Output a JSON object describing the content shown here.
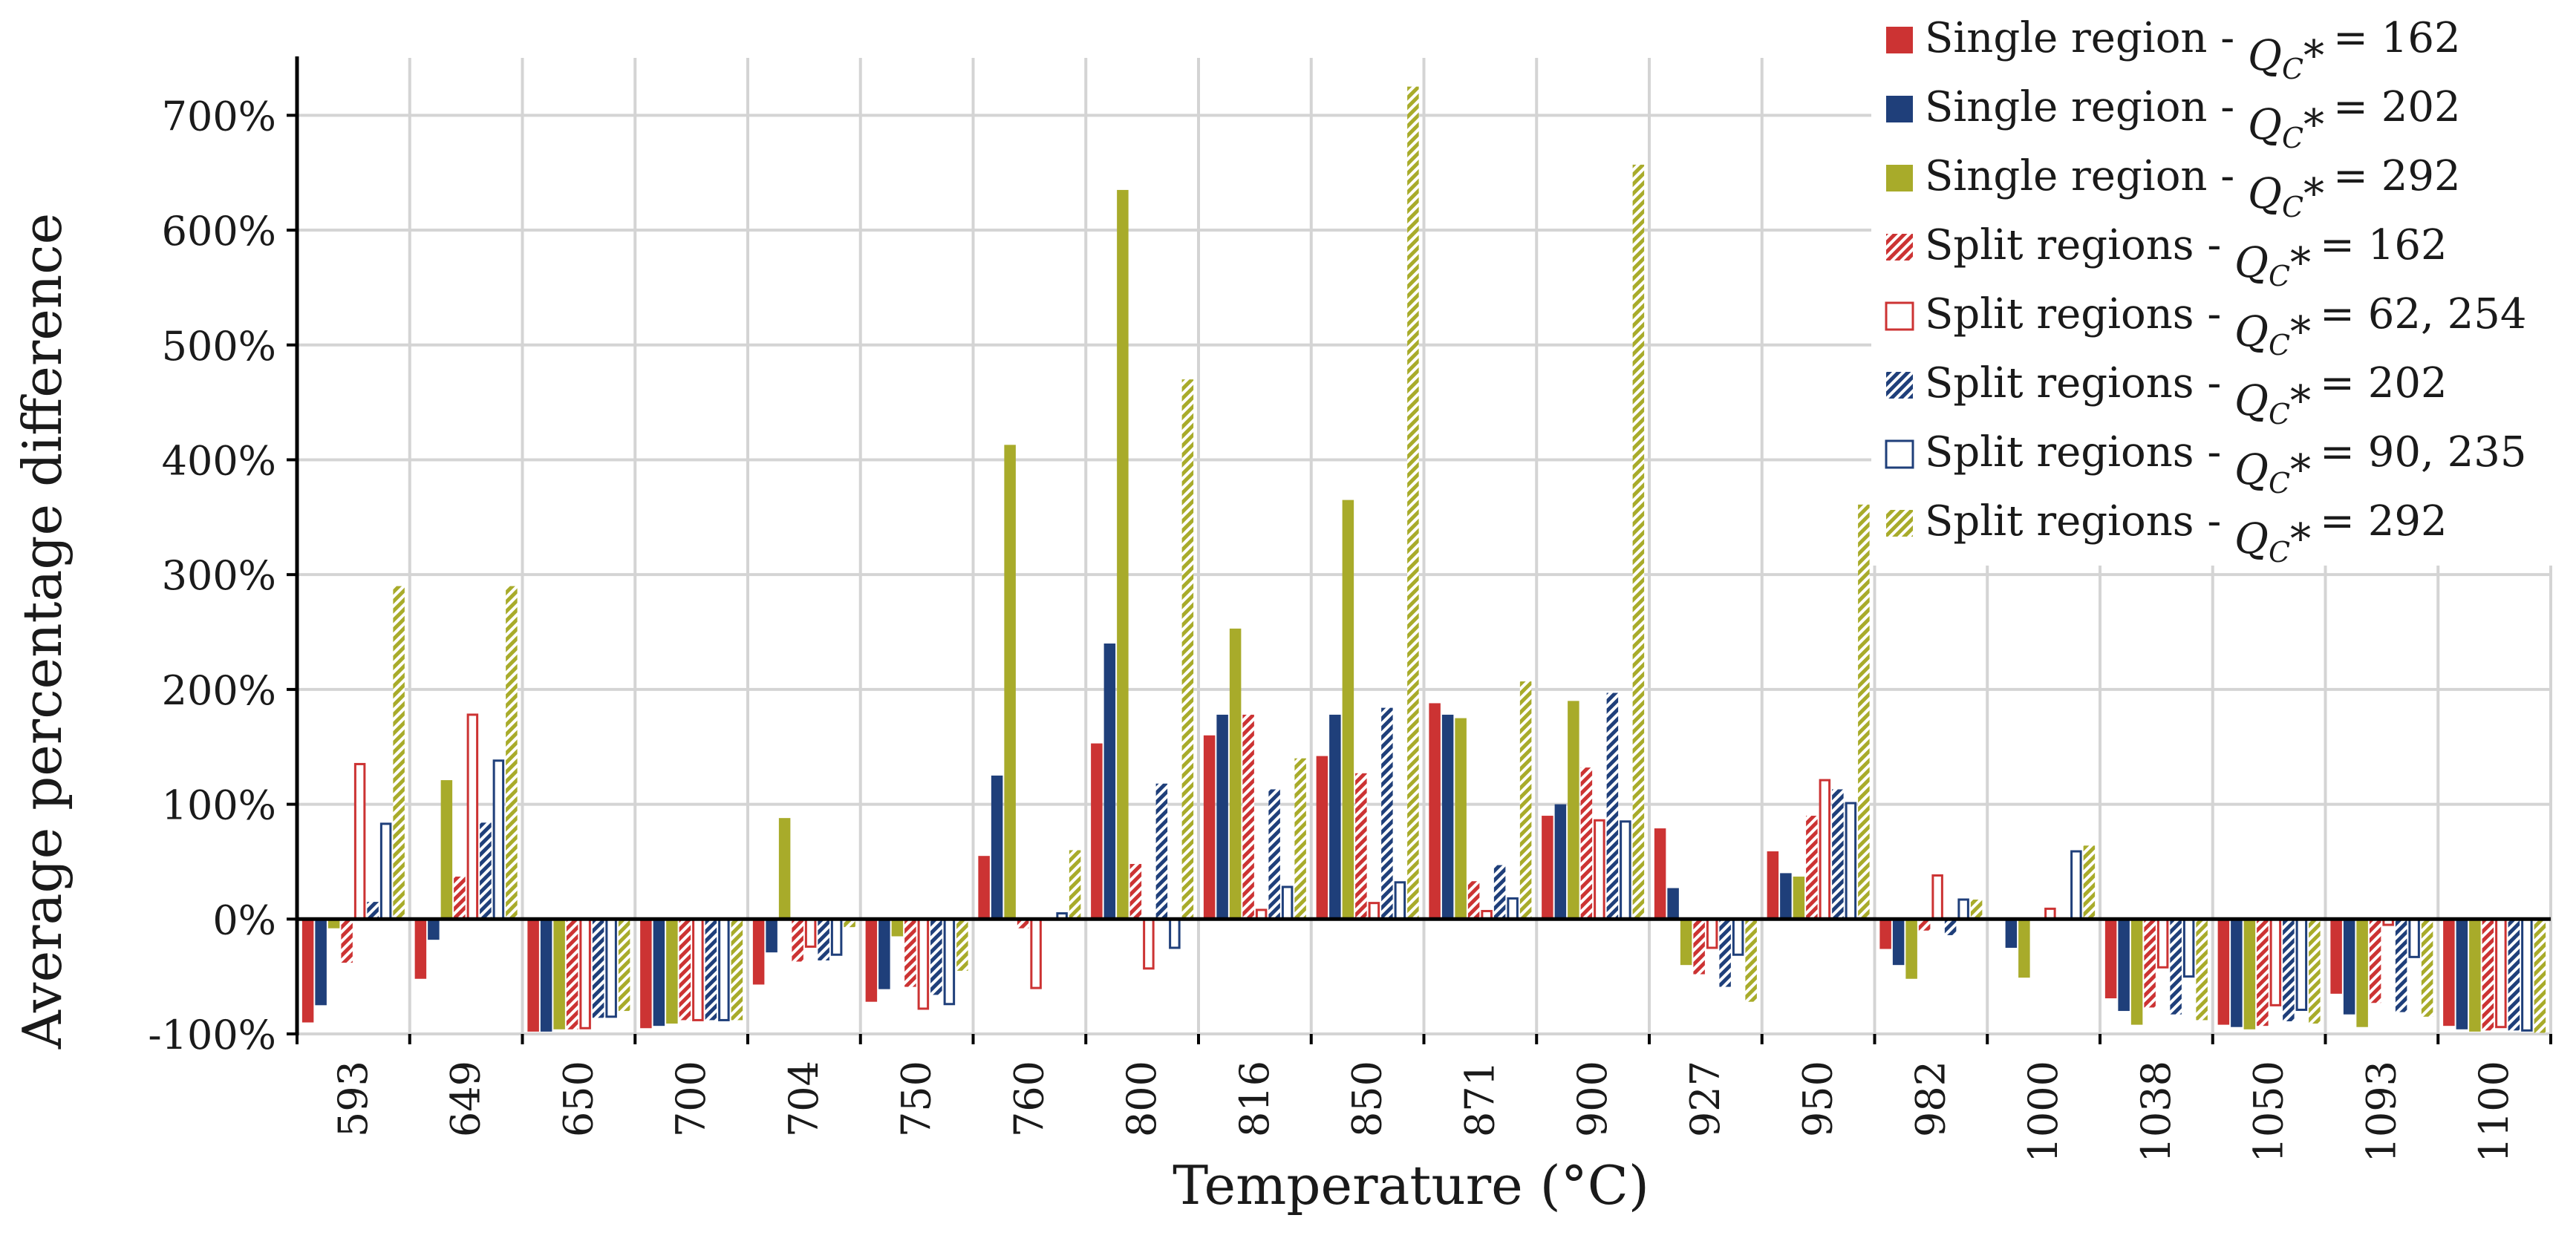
{
  "chart_data": {
    "type": "bar",
    "xlabel": "Temperature (°C)",
    "ylabel": "Average percentage difference",
    "ylim": [
      -100,
      750
    ],
    "yticks": [
      -100,
      0,
      100,
      200,
      300,
      400,
      500,
      600,
      700
    ],
    "ytick_labels": [
      "-100%",
      "0%",
      "100%",
      "200%",
      "300%",
      "400%",
      "500%",
      "600%",
      "700%"
    ],
    "grid": true,
    "legend_position": "top-right",
    "categories": [
      "593",
      "649",
      "650",
      "700",
      "704",
      "750",
      "760",
      "800",
      "816",
      "850",
      "871",
      "900",
      "927",
      "950",
      "982",
      "1000",
      "1038",
      "1050",
      "1093",
      "1100"
    ],
    "series": [
      {
        "name": "Single region - Q_C* = 162",
        "prefix": "Single region - ",
        "value_text": "= 162",
        "color": "#cc3333",
        "style": "solid",
        "values": [
          -90,
          -52,
          -98,
          -95,
          -57,
          -72,
          55,
          153,
          160,
          142,
          188,
          90,
          79,
          59,
          -26,
          null,
          -69,
          -92,
          -65,
          -93
        ]
      },
      {
        "name": "Single region - Q_C* = 202",
        "prefix": "Single region - ",
        "value_text": "= 202",
        "color": "#1f3f7a",
        "style": "solid",
        "values": [
          -75,
          -18,
          -98,
          -93,
          -29,
          -61,
          125,
          240,
          178,
          178,
          178,
          100,
          27,
          40,
          -40,
          -25,
          -80,
          -94,
          -83,
          -96
        ]
      },
      {
        "name": "Single region - Q_C* = 292",
        "prefix": "Single region - ",
        "value_text": "= 292",
        "color": "#a8ab2a",
        "style": "solid",
        "values": [
          -8,
          121,
          -96,
          -91,
          88,
          -15,
          413,
          635,
          253,
          365,
          175,
          190,
          -40,
          37,
          -52,
          -51,
          -92,
          -96,
          -94,
          -98
        ]
      },
      {
        "name": "Split regions - Q_C* = 162",
        "prefix": "Split regions - ",
        "value_text": "= 162",
        "color": "#cc3333",
        "style": "hatch",
        "values": [
          -38,
          37,
          -96,
          -88,
          -37,
          -59,
          -8,
          48,
          178,
          127,
          33,
          132,
          -48,
          90,
          -10,
          null,
          -77,
          -93,
          -73,
          -97
        ]
      },
      {
        "name": "Split regions - Q_C* = 62, 254",
        "prefix": "Split regions - ",
        "value_text": "= 62, 254",
        "color": "#cc3333",
        "style": "outline",
        "values": [
          135,
          178,
          -95,
          -88,
          -24,
          -78,
          -60,
          -43,
          8,
          14,
          7,
          86,
          -25,
          121,
          38,
          9,
          -42,
          -75,
          -5,
          -94
        ]
      },
      {
        "name": "Split regions - Q_C* = 202",
        "prefix": "Split regions - ",
        "value_text": "= 202",
        "color": "#1f3f7a",
        "style": "hatch",
        "values": [
          15,
          84,
          -86,
          -88,
          -36,
          -66,
          null,
          118,
          113,
          184,
          47,
          197,
          -59,
          113,
          -14,
          null,
          -83,
          -89,
          -81,
          -97
        ]
      },
      {
        "name": "Split regions - Q_C* = 90, 235",
        "prefix": "Split regions - ",
        "value_text": "= 90, 235",
        "color": "#1f3f7a",
        "style": "outline",
        "values": [
          83,
          138,
          -85,
          -88,
          -31,
          -74,
          5,
          -25,
          28,
          32,
          18,
          85,
          -31,
          101,
          17,
          59,
          -50,
          -79,
          -33,
          -97
        ]
      },
      {
        "name": "Split regions - Q_C* = 292",
        "prefix": "Split regions - ",
        "value_text": "= 292",
        "color": "#a8ab2a",
        "style": "hatch",
        "values": [
          290,
          290,
          -80,
          -88,
          -7,
          -45,
          60,
          470,
          140,
          725,
          207,
          657,
          -72,
          361,
          17,
          64,
          -88,
          -91,
          -85,
          -99
        ]
      }
    ]
  }
}
